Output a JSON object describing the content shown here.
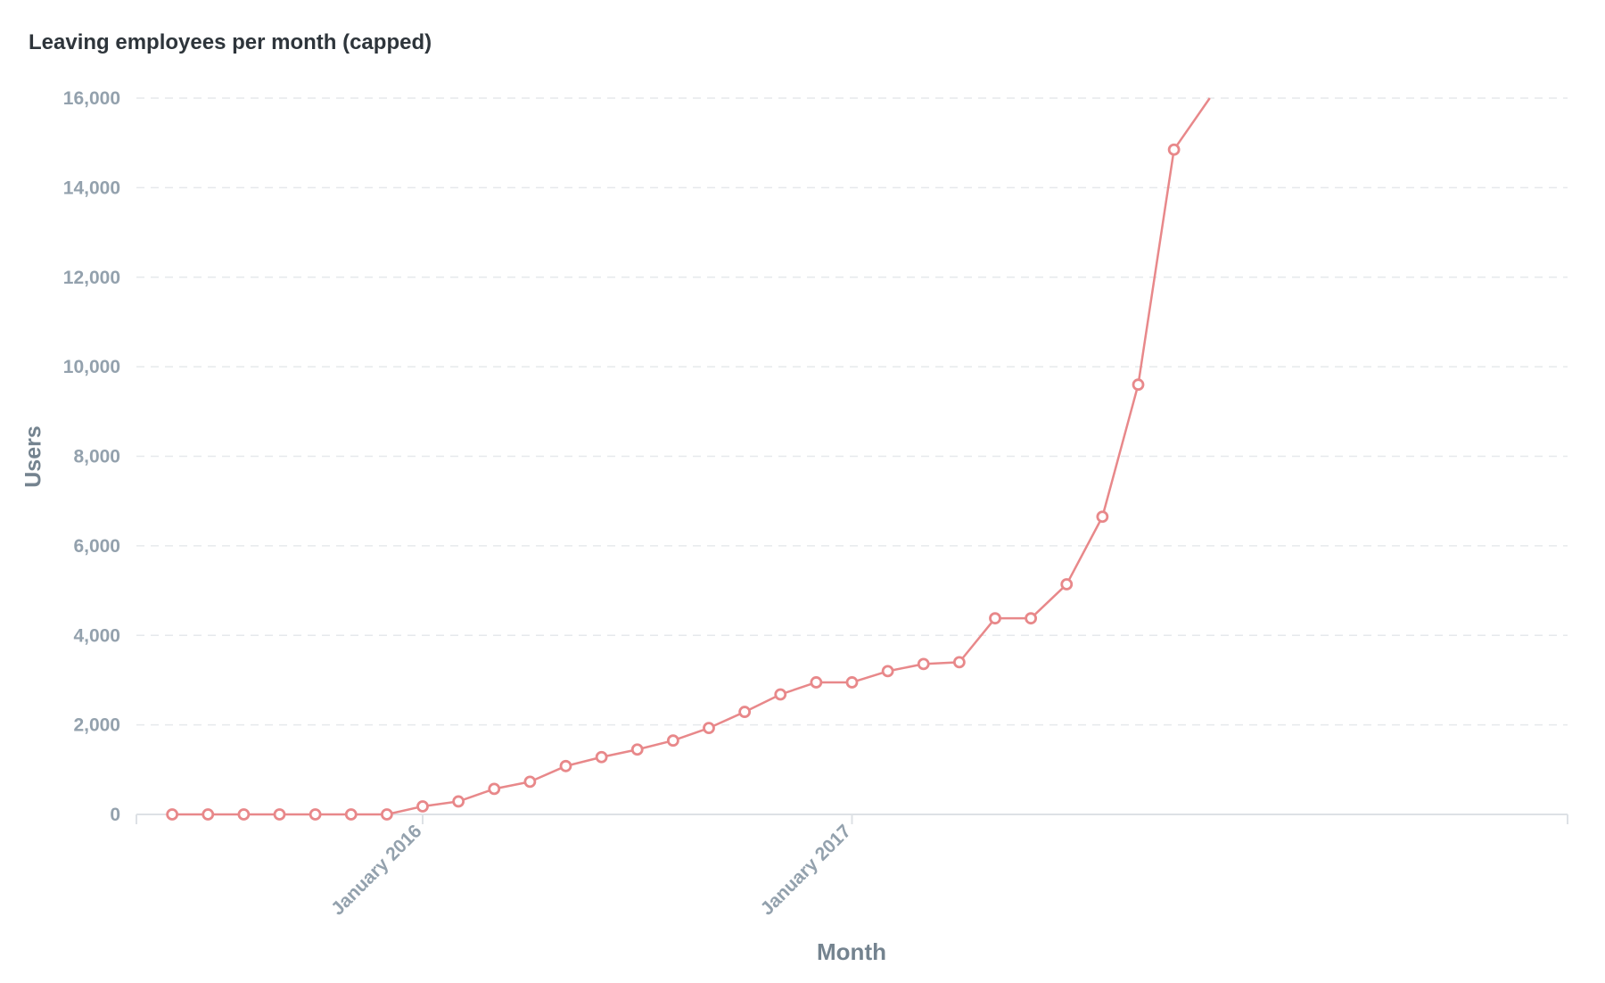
{
  "chart_data": {
    "type": "line",
    "title": "Leaving employees per month (capped)",
    "xlabel": "Month",
    "ylabel": "Users",
    "ylim": [
      0,
      16000
    ],
    "y_ticks": [
      0,
      2000,
      4000,
      6000,
      8000,
      10000,
      12000,
      14000,
      16000
    ],
    "y_tick_labels": [
      "0",
      "2,000",
      "4,000",
      "6,000",
      "8,000",
      "10,000",
      "12,000",
      "14,000",
      "16,000"
    ],
    "x_ticks": [
      {
        "month": "2016-01",
        "label": "January 2016"
      },
      {
        "month": "2017-01",
        "label": "January 2017"
      }
    ],
    "x_range": [
      "2015-05",
      "2018-09"
    ],
    "grid": true,
    "line_color": "#e8888a",
    "series": [
      {
        "x": [
          "2015-06",
          "2015-07",
          "2015-08",
          "2015-09",
          "2015-10",
          "2015-11",
          "2015-12",
          "2016-01",
          "2016-02",
          "2016-03",
          "2016-04",
          "2016-05",
          "2016-06",
          "2016-07",
          "2016-08",
          "2016-09",
          "2016-10",
          "2016-11",
          "2016-12",
          "2017-01",
          "2017-02",
          "2017-03",
          "2017-04",
          "2017-05",
          "2017-06",
          "2017-07",
          "2017-08",
          "2017-09",
          "2017-10",
          "2017-11"
        ],
        "values": [
          0,
          0,
          0,
          0,
          0,
          0,
          0,
          180,
          290,
          570,
          730,
          1080,
          1280,
          1450,
          1650,
          1930,
          2290,
          2680,
          2950,
          2950,
          3200,
          3360,
          3400,
          4380,
          4380,
          5140,
          6650,
          9600,
          14850,
          16000
        ],
        "last_point_marker": false
      }
    ]
  }
}
